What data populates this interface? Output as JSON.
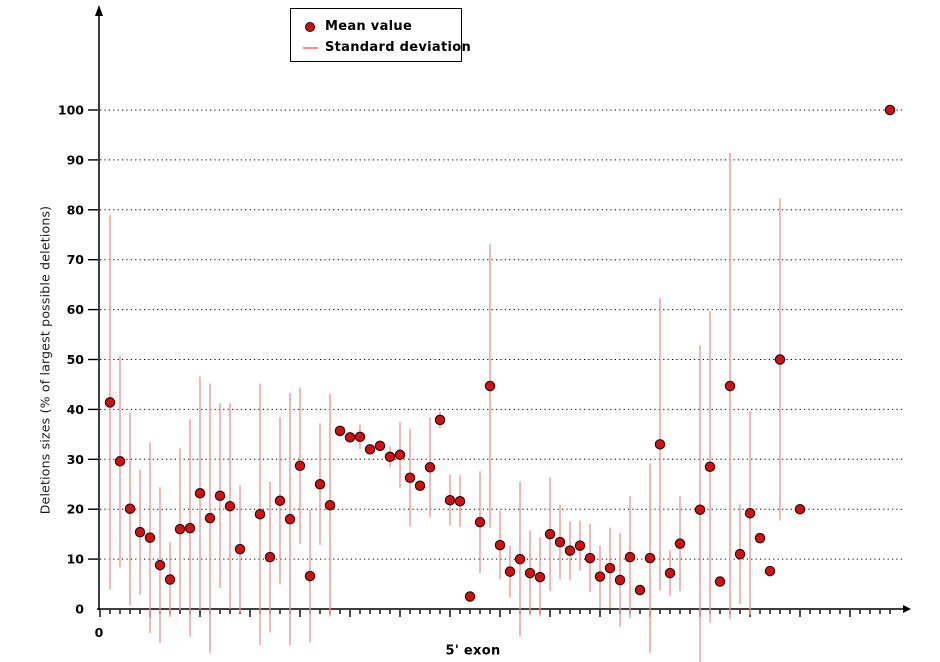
{
  "colors": {
    "mean_dot": "#cc1212",
    "mean_dot_border": "#330000",
    "std_bar": "#f09090",
    "axis": "#000000",
    "grid": "#000000",
    "background": "#ffffff",
    "legend_border": "#000000",
    "text": "#000000"
  },
  "chart_data": {
    "type": "scatter",
    "title": "",
    "xlabel": "5' exon",
    "ylabel": "Deletions sizes (% of largest possible deletions)",
    "legend_position": "top-center",
    "grid": "horizontal-dotted",
    "legend": [
      {
        "label": "Mean value",
        "marker": "dot"
      },
      {
        "label": "Standard deviation",
        "marker": "line"
      }
    ],
    "y_axis": {
      "ticks": [
        0,
        10,
        20,
        30,
        40,
        50,
        60,
        70,
        80,
        90,
        100
      ],
      "range": [
        0,
        120
      ],
      "arrow": true
    },
    "x_axis": {
      "origin_label": "0",
      "positions": 80,
      "major_tick_every": 5,
      "arrow": true
    },
    "series_note": "points: x = exon index position, mean = mean deletion size (%), sd = standard deviation half-length of error bar (0 = no bar drawn)",
    "points": [
      {
        "x": 1,
        "mean": 41.4,
        "sd": 37.5
      },
      {
        "x": 2,
        "mean": 29.6,
        "sd": 21.2
      },
      {
        "x": 3,
        "mean": 20.1,
        "sd": 19.4
      },
      {
        "x": 4,
        "mean": 15.4,
        "sd": 12.5
      },
      {
        "x": 5,
        "mean": 14.3,
        "sd": 19.1
      },
      {
        "x": 6,
        "mean": 8.8,
        "sd": 15.6
      },
      {
        "x": 7,
        "mean": 5.9,
        "sd": 7.5
      },
      {
        "x": 8,
        "mean": 16.0,
        "sd": 16.2
      },
      {
        "x": 9,
        "mean": 16.2,
        "sd": 21.8
      },
      {
        "x": 10,
        "mean": 23.2,
        "sd": 23.4
      },
      {
        "x": 11,
        "mean": 18.2,
        "sd": 27.0
      },
      {
        "x": 12,
        "mean": 22.7,
        "sd": 18.5
      },
      {
        "x": 13,
        "mean": 20.6,
        "sd": 20.6
      },
      {
        "x": 14,
        "mean": 12.0,
        "sd": 12.8
      },
      {
        "x": 16,
        "mean": 19.0,
        "sd": 26.2
      },
      {
        "x": 17,
        "mean": 10.4,
        "sd": 15.1
      },
      {
        "x": 18,
        "mean": 21.7,
        "sd": 16.7
      },
      {
        "x": 19,
        "mean": 18.0,
        "sd": 25.3
      },
      {
        "x": 20,
        "mean": 28.7,
        "sd": 15.7
      },
      {
        "x": 21,
        "mean": 6.6,
        "sd": 13.3
      },
      {
        "x": 22,
        "mean": 25.0,
        "sd": 12.2
      },
      {
        "x": 23,
        "mean": 20.8,
        "sd": 22.3
      },
      {
        "x": 24,
        "mean": 35.7,
        "sd": 0
      },
      {
        "x": 25,
        "mean": 34.4,
        "sd": 0
      },
      {
        "x": 26,
        "mean": 34.5,
        "sd": 2.5
      },
      {
        "x": 27,
        "mean": 32.0,
        "sd": 0
      },
      {
        "x": 28,
        "mean": 32.7,
        "sd": 0
      },
      {
        "x": 29,
        "mean": 30.5,
        "sd": 2.1
      },
      {
        "x": 30,
        "mean": 30.9,
        "sd": 6.6
      },
      {
        "x": 31,
        "mean": 26.3,
        "sd": 9.8
      },
      {
        "x": 32,
        "mean": 24.7,
        "sd": 0
      },
      {
        "x": 33,
        "mean": 28.4,
        "sd": 10.0
      },
      {
        "x": 34,
        "mean": 37.9,
        "sd": 1.7
      },
      {
        "x": 35,
        "mean": 21.8,
        "sd": 5.1
      },
      {
        "x": 36,
        "mean": 21.6,
        "sd": 5.2
      },
      {
        "x": 37,
        "mean": 2.5,
        "sd": 0
      },
      {
        "x": 38,
        "mean": 17.4,
        "sd": 10.2
      },
      {
        "x": 39,
        "mean": 44.7,
        "sd": 28.4
      },
      {
        "x": 40,
        "mean": 12.8,
        "sd": 6.9
      },
      {
        "x": 41,
        "mean": 7.5,
        "sd": 5.2
      },
      {
        "x": 42,
        "mean": 10.0,
        "sd": 15.5
      },
      {
        "x": 43,
        "mean": 7.2,
        "sd": 8.5
      },
      {
        "x": 44,
        "mean": 6.4,
        "sd": 7.9
      },
      {
        "x": 45,
        "mean": 15.0,
        "sd": 11.4
      },
      {
        "x": 46,
        "mean": 13.4,
        "sd": 7.5
      },
      {
        "x": 47,
        "mean": 11.7,
        "sd": 5.9
      },
      {
        "x": 48,
        "mean": 12.7,
        "sd": 5.0
      },
      {
        "x": 49,
        "mean": 10.2,
        "sd": 6.8
      },
      {
        "x": 50,
        "mean": 6.5,
        "sd": 6.2
      },
      {
        "x": 51,
        "mean": 8.2,
        "sd": 8.1
      },
      {
        "x": 52,
        "mean": 5.8,
        "sd": 9.4
      },
      {
        "x": 53,
        "mean": 10.4,
        "sd": 12.2
      },
      {
        "x": 54,
        "mean": 3.8,
        "sd": 0
      },
      {
        "x": 55,
        "mean": 10.2,
        "sd": 19.0
      },
      {
        "x": 56,
        "mean": 33.0,
        "sd": 29.3
      },
      {
        "x": 57,
        "mean": 7.2,
        "sd": 4.6
      },
      {
        "x": 58,
        "mean": 13.1,
        "sd": 9.5
      },
      {
        "x": 60,
        "mean": 19.9,
        "sd": 33.0
      },
      {
        "x": 61,
        "mean": 28.5,
        "sd": 31.2
      },
      {
        "x": 62,
        "mean": 5.5,
        "sd": 0
      },
      {
        "x": 63,
        "mean": 44.7,
        "sd": 46.7
      },
      {
        "x": 64,
        "mean": 11.0,
        "sd": 10.0
      },
      {
        "x": 65,
        "mean": 19.2,
        "sd": 20.4
      },
      {
        "x": 66,
        "mean": 14.2,
        "sd": 0
      },
      {
        "x": 67,
        "mean": 7.6,
        "sd": 0
      },
      {
        "x": 68,
        "mean": 50.0,
        "sd": 32.3
      },
      {
        "x": 70,
        "mean": 20.0,
        "sd": 0
      },
      {
        "x": 79,
        "mean": 100.0,
        "sd": 0
      }
    ]
  }
}
